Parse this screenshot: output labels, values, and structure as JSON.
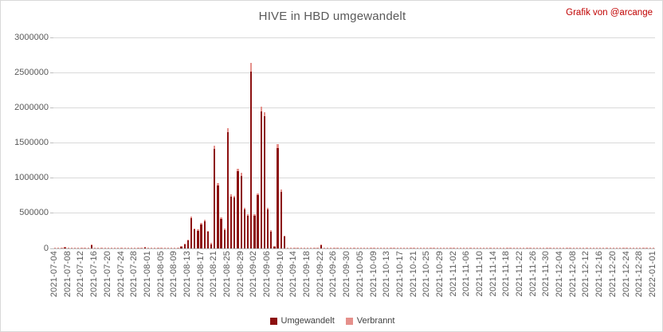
{
  "header": {
    "title": "HIVE in HBD umgewandelt",
    "credit": "Grafik von @arcange"
  },
  "colors": {
    "umgewandelt": "#8c1010",
    "verbrannt": "#e5908b",
    "title_text": "#595959",
    "credit_text": "#c00000",
    "gridline": "#d9d9d9",
    "axis_line": "#bfbfbf",
    "tick_text": "#595959"
  },
  "chart_data": {
    "type": "bar",
    "stacked": true,
    "title": "HIVE in HBD umgewandelt",
    "xlabel": "",
    "ylabel": "",
    "ylim": [
      0,
      3000000
    ],
    "yticks": [
      0,
      500000,
      1000000,
      1500000,
      2000000,
      2500000,
      3000000
    ],
    "grid": "horizontal",
    "legend_position": "bottom-center",
    "num_days": 181,
    "tick_every": 4,
    "x_tick_labels": [
      "2021-07-04",
      "2021-07-08",
      "2021-07-12",
      "2021-07-16",
      "2021-07-20",
      "2021-07-24",
      "2021-07-28",
      "2021-08-01",
      "2021-08-05",
      "2021-08-09",
      "2021-08-13",
      "2021-08-17",
      "2021-08-21",
      "2021-08-25",
      "2021-08-29",
      "2021-09-02",
      "2021-09-06",
      "2021-09-10",
      "2021-09-14",
      "2021-09-18",
      "2021-09-22",
      "2021-09-26",
      "2021-09-30",
      "2021-10-05",
      "2021-10-09",
      "2021-10-13",
      "2021-10-17",
      "2021-10-21",
      "2021-10-25",
      "2021-10-29",
      "2021-11-02",
      "2021-11-06",
      "2021-11-10",
      "2021-11-14",
      "2021-11-18",
      "2021-11-22",
      "2021-11-26",
      "2021-11-30",
      "2021-12-04",
      "2021-12-08",
      "2021-12-12",
      "2021-12-16",
      "2021-12-20",
      "2021-12-24",
      "2021-12-28",
      "2022-01-01"
    ],
    "series": [
      {
        "name": "Umgewandelt",
        "color": "#8c1010"
      },
      {
        "name": "Verbrannt",
        "color": "#e5908b"
      }
    ],
    "baseline_verbrannt": 15000,
    "bars": [
      {
        "i": 3,
        "date": "2021-07-07",
        "u": 18000,
        "v": 10000
      },
      {
        "i": 11,
        "date": "2021-07-15",
        "u": 45000,
        "v": 12000
      },
      {
        "i": 27,
        "date": "2021-07-31",
        "u": 15000,
        "v": 10000
      },
      {
        "i": 38,
        "date": "2021-08-11",
        "u": 22000,
        "v": 12000
      },
      {
        "i": 39,
        "date": "2021-08-12",
        "u": 55000,
        "v": 14000
      },
      {
        "i": 40,
        "date": "2021-08-13",
        "u": 115000,
        "v": 15000
      },
      {
        "i": 41,
        "date": "2021-08-14",
        "u": 430000,
        "v": 24000
      },
      {
        "i": 42,
        "date": "2021-08-15",
        "u": 268000,
        "v": 18000
      },
      {
        "i": 43,
        "date": "2021-08-16",
        "u": 250000,
        "v": 17000
      },
      {
        "i": 44,
        "date": "2021-08-17",
        "u": 340000,
        "v": 20000
      },
      {
        "i": 45,
        "date": "2021-08-18",
        "u": 385000,
        "v": 22000
      },
      {
        "i": 46,
        "date": "2021-08-19",
        "u": 235000,
        "v": 16000
      },
      {
        "i": 47,
        "date": "2021-08-20",
        "u": 62000,
        "v": 12000
      },
      {
        "i": 48,
        "date": "2021-08-21",
        "u": 1415000,
        "v": 45000
      },
      {
        "i": 49,
        "date": "2021-08-22",
        "u": 900000,
        "v": 32000
      },
      {
        "i": 50,
        "date": "2021-08-23",
        "u": 415000,
        "v": 22000
      },
      {
        "i": 51,
        "date": "2021-08-24",
        "u": 262000,
        "v": 18000
      },
      {
        "i": 52,
        "date": "2021-08-25",
        "u": 1655000,
        "v": 58000
      },
      {
        "i": 53,
        "date": "2021-08-26",
        "u": 740000,
        "v": 28000
      },
      {
        "i": 54,
        "date": "2021-08-27",
        "u": 722000,
        "v": 27000
      },
      {
        "i": 55,
        "date": "2021-08-28",
        "u": 1095000,
        "v": 40000
      },
      {
        "i": 56,
        "date": "2021-08-29",
        "u": 1035000,
        "v": 36000
      },
      {
        "i": 57,
        "date": "2021-08-30",
        "u": 555000,
        "v": 24000
      },
      {
        "i": 58,
        "date": "2021-08-31",
        "u": 462000,
        "v": 23000
      },
      {
        "i": 59,
        "date": "2021-09-01",
        "u": 2515000,
        "v": 125000
      },
      {
        "i": 60,
        "date": "2021-09-02",
        "u": 468000,
        "v": 24000
      },
      {
        "i": 61,
        "date": "2021-09-03",
        "u": 757000,
        "v": 30000
      },
      {
        "i": 62,
        "date": "2021-09-04",
        "u": 1945000,
        "v": 72000
      },
      {
        "i": 63,
        "date": "2021-09-05",
        "u": 1875000,
        "v": 62000
      },
      {
        "i": 64,
        "date": "2021-09-06",
        "u": 552000,
        "v": 25000
      },
      {
        "i": 65,
        "date": "2021-09-07",
        "u": 242000,
        "v": 16000
      },
      {
        "i": 66,
        "date": "2021-09-08",
        "u": 28000,
        "v": 10000
      },
      {
        "i": 67,
        "date": "2021-09-09",
        "u": 1428000,
        "v": 55000
      },
      {
        "i": 68,
        "date": "2021-09-10",
        "u": 808000,
        "v": 34000
      },
      {
        "i": 69,
        "date": "2021-09-11",
        "u": 168000,
        "v": 14000
      },
      {
        "i": 80,
        "date": "2021-09-22",
        "u": 40000,
        "v": 12000
      }
    ]
  }
}
